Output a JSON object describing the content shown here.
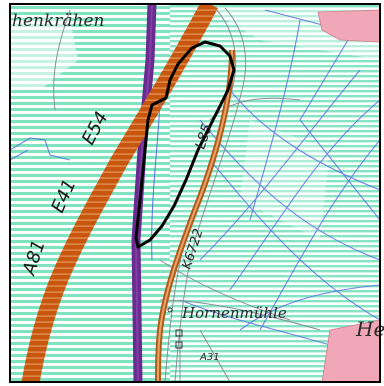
{
  "map": {
    "labels": {
      "place_top": "henkrähen",
      "road_a81": "A81",
      "road_e41": "E41",
      "road_e54": "E54",
      "road_l": "L85",
      "road_k": "K6722",
      "place_bottom": "Hornenmühle",
      "road_a31": "A31",
      "edge_bottom_right": "He"
    },
    "colors": {
      "hatch": "#7fe3bf",
      "motorway": "#c9560f",
      "rail": "#6b2a8f",
      "blue_lines": "#5a6fe0",
      "outline": "#000000",
      "settlement": "#f0a7b8"
    }
  }
}
